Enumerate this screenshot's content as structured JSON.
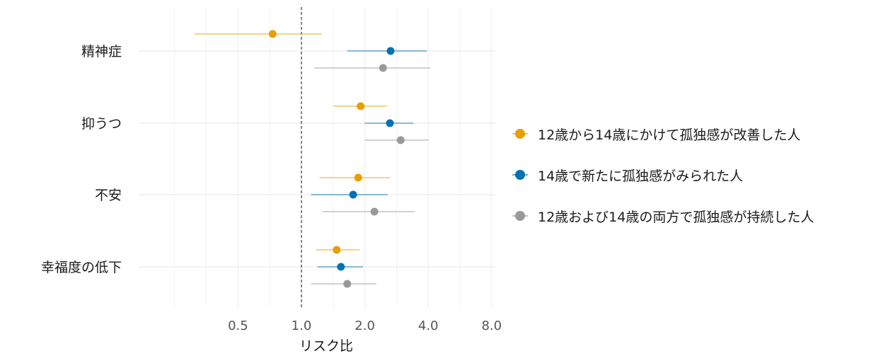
{
  "chart_data": {
    "type": "forest",
    "xlabel": "リスク比",
    "ylabel": "",
    "x_scale": "log2",
    "xlim": [
      0.17,
      8.3
    ],
    "x_ticks": [
      "0.5",
      "1.0",
      "2.0",
      "4.0",
      "8.0"
    ],
    "x_tick_values": [
      0.5,
      1,
      2,
      4,
      8
    ],
    "reference_line": 1.0,
    "grid": true,
    "legend_position": "right",
    "categories": [
      "精神症",
      "抑うつ",
      "不安",
      "幸福度の低下"
    ],
    "series": [
      {
        "name": "12歳から14歳にかけて孤独感が改善した人",
        "color": "#E69F00",
        "estimate": [
          0.73,
          1.91,
          1.86,
          1.47
        ],
        "lower": [
          0.31,
          1.42,
          1.22,
          1.17
        ],
        "upper": [
          1.25,
          2.55,
          2.63,
          1.89
        ]
      },
      {
        "name": "14歳で新たに孤独感がみられた人",
        "color": "#0072B2",
        "estimate": [
          2.65,
          2.63,
          1.76,
          1.54
        ],
        "lower": [
          1.65,
          2.0,
          1.11,
          1.19
        ],
        "upper": [
          3.94,
          3.4,
          2.57,
          1.96
        ]
      },
      {
        "name": "12歳および14歳の両方で孤独感が持続した人",
        "color": "#999999",
        "estimate": [
          2.44,
          2.96,
          2.22,
          1.65
        ],
        "lower": [
          1.15,
          2.0,
          1.26,
          1.11
        ],
        "upper": [
          4.09,
          4.03,
          3.45,
          2.27
        ]
      }
    ]
  }
}
